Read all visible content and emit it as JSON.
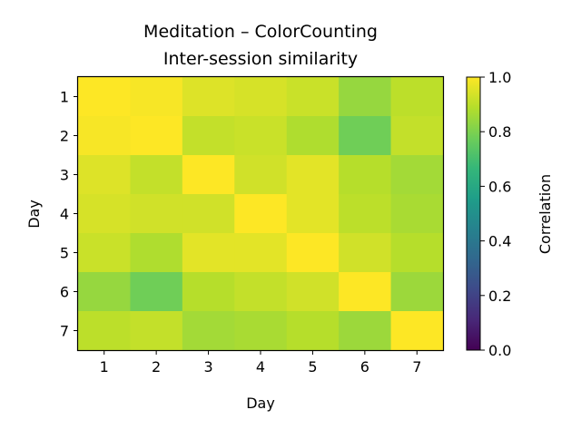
{
  "chart_data": {
    "type": "heatmap",
    "title": "Meditation – ColorCounting",
    "subtitle": "Inter-session similarity",
    "xlabel": "Day",
    "ylabel": "Day",
    "x_categories": [
      "1",
      "2",
      "3",
      "4",
      "5",
      "6",
      "7"
    ],
    "y_categories": [
      "1",
      "2",
      "3",
      "4",
      "5",
      "6",
      "7"
    ],
    "values": [
      [
        1.0,
        0.99,
        0.95,
        0.94,
        0.92,
        0.84,
        0.9
      ],
      [
        0.99,
        1.0,
        0.91,
        0.92,
        0.88,
        0.78,
        0.91
      ],
      [
        0.95,
        0.91,
        1.0,
        0.93,
        0.96,
        0.89,
        0.86
      ],
      [
        0.94,
        0.93,
        0.93,
        1.0,
        0.96,
        0.9,
        0.87
      ],
      [
        0.92,
        0.88,
        0.96,
        0.96,
        1.0,
        0.93,
        0.89
      ],
      [
        0.84,
        0.78,
        0.89,
        0.91,
        0.93,
        1.0,
        0.85
      ],
      [
        0.9,
        0.91,
        0.86,
        0.87,
        0.89,
        0.85,
        1.0
      ]
    ],
    "colormap": "viridis",
    "colorbar": {
      "label": "Correlation",
      "range": [
        0.0,
        1.0
      ],
      "ticks": [
        "0.0",
        "0.2",
        "0.4",
        "0.6",
        "0.8",
        "1.0"
      ]
    }
  }
}
